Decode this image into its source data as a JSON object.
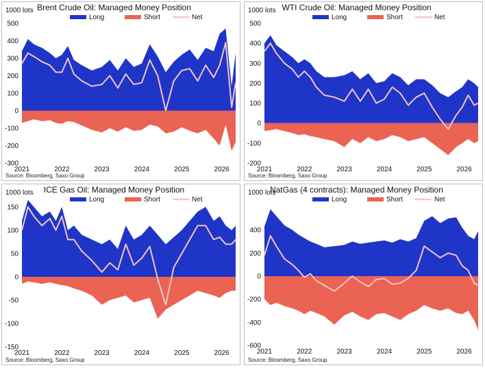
{
  "colors": {
    "long": "#1f35c8",
    "short": "#eb6353",
    "net": "#f7c4cc"
  },
  "chart_data": [
    {
      "type": "area",
      "title": "Brent Crude Oil: Managed Money Position",
      "unit_label": "1000 lots",
      "source": "Source: Bloomberg, Saxo Group",
      "legend": [
        "Long",
        "Short",
        "Net"
      ],
      "legend_position": "top",
      "ylim": [
        -300,
        500
      ],
      "yticks": [
        500,
        400,
        300,
        200,
        100,
        0,
        -100,
        -200,
        -300
      ],
      "xlim": [
        2021.0,
        2026.35
      ],
      "xticks": [
        "2021",
        "2022",
        "2023",
        "2024",
        "2025",
        "2026"
      ],
      "series": [
        {
          "name": "Long",
          "x": [
            2021.0,
            2021.15,
            2021.3,
            2021.5,
            2021.7,
            2021.85,
            2022.0,
            2022.15,
            2022.3,
            2022.5,
            2022.75,
            2023.0,
            2023.2,
            2023.4,
            2023.6,
            2023.8,
            2024.0,
            2024.2,
            2024.4,
            2024.6,
            2024.8,
            2025.0,
            2025.2,
            2025.4,
            2025.6,
            2025.8,
            2025.95,
            2026.1,
            2026.25,
            2026.35
          ],
          "values": [
            340,
            410,
            380,
            360,
            330,
            300,
            320,
            370,
            290,
            260,
            230,
            250,
            290,
            230,
            300,
            250,
            270,
            380,
            310,
            220,
            280,
            320,
            350,
            290,
            360,
            340,
            440,
            470,
            140,
            330
          ]
        },
        {
          "name": "Short",
          "x": [
            2021.0,
            2021.15,
            2021.3,
            2021.5,
            2021.7,
            2021.85,
            2022.0,
            2022.15,
            2022.3,
            2022.5,
            2022.75,
            2023.0,
            2023.2,
            2023.4,
            2023.6,
            2023.8,
            2024.0,
            2024.2,
            2024.4,
            2024.6,
            2024.8,
            2025.0,
            2025.2,
            2025.4,
            2025.6,
            2025.8,
            2025.95,
            2026.1,
            2026.25,
            2026.35
          ],
          "values": [
            -70,
            -60,
            -50,
            -60,
            -55,
            -70,
            -75,
            -60,
            -65,
            -85,
            -110,
            -125,
            -100,
            -120,
            -95,
            -115,
            -110,
            -80,
            -90,
            -130,
            -120,
            -95,
            -115,
            -130,
            -110,
            -160,
            -200,
            -80,
            -230,
            -180
          ]
        },
        {
          "name": "Net",
          "x": [
            2021.0,
            2021.15,
            2021.3,
            2021.5,
            2021.7,
            2021.85,
            2022.0,
            2022.15,
            2022.3,
            2022.5,
            2022.75,
            2023.0,
            2023.2,
            2023.4,
            2023.6,
            2023.8,
            2024.0,
            2024.2,
            2024.4,
            2024.6,
            2024.8,
            2025.0,
            2025.2,
            2025.4,
            2025.6,
            2025.8,
            2025.95,
            2026.1,
            2026.25,
            2026.35
          ],
          "values": [
            270,
            330,
            310,
            280,
            260,
            220,
            220,
            300,
            210,
            170,
            140,
            150,
            200,
            130,
            210,
            150,
            160,
            290,
            200,
            0,
            170,
            230,
            240,
            170,
            260,
            190,
            260,
            390,
            20,
            160
          ]
        }
      ]
    },
    {
      "type": "area",
      "title": "WTI Crude Oil: Managed Money Position",
      "unit_label": "1000 lots",
      "source": "Source: Bloomberg, Saxo Group",
      "legend": [
        "Long",
        "Short",
        "Net"
      ],
      "legend_position": "top",
      "ylim": [
        -200,
        500
      ],
      "yticks": [
        500,
        400,
        300,
        200,
        100,
        0,
        -100,
        -200
      ],
      "xlim": [
        2021.0,
        2026.35
      ],
      "xticks": [
        "2021",
        "2022",
        "2023",
        "2024",
        "2025",
        "2026"
      ],
      "series": [
        {
          "name": "Long",
          "x": [
            2021.0,
            2021.15,
            2021.3,
            2021.5,
            2021.7,
            2021.85,
            2022.0,
            2022.15,
            2022.3,
            2022.5,
            2022.75,
            2023.0,
            2023.2,
            2023.4,
            2023.6,
            2023.8,
            2024.0,
            2024.2,
            2024.4,
            2024.6,
            2024.8,
            2025.0,
            2025.2,
            2025.4,
            2025.6,
            2025.8,
            2025.95,
            2026.1,
            2026.25,
            2026.35
          ],
          "values": [
            400,
            440,
            390,
            360,
            330,
            300,
            320,
            300,
            260,
            230,
            230,
            240,
            260,
            220,
            250,
            200,
            210,
            250,
            230,
            190,
            220,
            220,
            190,
            150,
            130,
            160,
            180,
            220,
            200,
            180
          ]
        },
        {
          "name": "Short",
          "x": [
            2021.0,
            2021.15,
            2021.3,
            2021.5,
            2021.7,
            2021.85,
            2022.0,
            2022.15,
            2022.3,
            2022.5,
            2022.75,
            2023.0,
            2023.2,
            2023.4,
            2023.6,
            2023.8,
            2024.0,
            2024.2,
            2024.4,
            2024.6,
            2024.8,
            2025.0,
            2025.2,
            2025.4,
            2025.6,
            2025.8,
            2025.95,
            2026.1,
            2026.25,
            2026.35
          ],
          "values": [
            -40,
            -35,
            -30,
            -40,
            -50,
            -60,
            -55,
            -65,
            -70,
            -80,
            -90,
            -120,
            -80,
            -100,
            -70,
            -90,
            -80,
            -60,
            -70,
            -90,
            -80,
            -70,
            -100,
            -130,
            -160,
            -120,
            -100,
            -80,
            -100,
            -90
          ]
        },
        {
          "name": "Net",
          "x": [
            2021.0,
            2021.15,
            2021.3,
            2021.5,
            2021.7,
            2021.85,
            2022.0,
            2022.15,
            2022.3,
            2022.5,
            2022.75,
            2023.0,
            2023.2,
            2023.4,
            2023.6,
            2023.8,
            2024.0,
            2024.2,
            2024.4,
            2024.6,
            2024.8,
            2025.0,
            2025.2,
            2025.4,
            2025.6,
            2025.8,
            2025.95,
            2026.1,
            2026.25,
            2026.35
          ],
          "values": [
            360,
            400,
            350,
            300,
            270,
            230,
            260,
            230,
            180,
            140,
            130,
            110,
            170,
            110,
            170,
            100,
            120,
            180,
            150,
            90,
            130,
            150,
            80,
            20,
            -30,
            40,
            80,
            140,
            90,
            100
          ]
        }
      ]
    },
    {
      "type": "area",
      "title": "ICE Gas Oil: Managed Money Position",
      "unit_label": "1000 lots",
      "source": "Source: Bloomberg, Saxo Group",
      "legend": [
        "Long",
        "Short",
        "Net"
      ],
      "legend_position": "top",
      "ylim": [
        -150,
        150
      ],
      "yticks": [
        150,
        100,
        50,
        0,
        -50,
        -100,
        -150
      ],
      "xlim": [
        2021.0,
        2026.35
      ],
      "xticks": [
        "2021",
        "2022",
        "2023",
        "2024",
        "2025",
        "2026"
      ],
      "series": [
        {
          "name": "Long",
          "x": [
            2021.0,
            2021.15,
            2021.3,
            2021.5,
            2021.7,
            2021.85,
            2022.0,
            2022.15,
            2022.3,
            2022.5,
            2022.75,
            2023.0,
            2023.2,
            2023.4,
            2023.6,
            2023.8,
            2024.0,
            2024.2,
            2024.4,
            2024.6,
            2024.8,
            2025.0,
            2025.2,
            2025.4,
            2025.6,
            2025.8,
            2025.95,
            2026.1,
            2026.25,
            2026.35
          ],
          "values": [
            120,
            165,
            150,
            130,
            140,
            120,
            150,
            100,
            110,
            90,
            80,
            70,
            80,
            60,
            110,
            80,
            90,
            110,
            90,
            70,
            85,
            100,
            120,
            140,
            150,
            120,
            130,
            110,
            100,
            110
          ]
        },
        {
          "name": "Short",
          "x": [
            2021.0,
            2021.15,
            2021.3,
            2021.5,
            2021.7,
            2021.85,
            2022.0,
            2022.15,
            2022.3,
            2022.5,
            2022.75,
            2023.0,
            2023.2,
            2023.4,
            2023.6,
            2023.8,
            2024.0,
            2024.2,
            2024.4,
            2024.6,
            2024.8,
            2025.0,
            2025.2,
            2025.4,
            2025.6,
            2025.8,
            2025.95,
            2026.1,
            2026.25,
            2026.35
          ],
          "values": [
            -15,
            -10,
            -12,
            -15,
            -12,
            -15,
            -18,
            -20,
            -25,
            -30,
            -40,
            -60,
            -50,
            -45,
            -40,
            -55,
            -50,
            -45,
            -90,
            -70,
            -60,
            -50,
            -40,
            -30,
            -35,
            -40,
            -45,
            -35,
            -30,
            -30
          ]
        },
        {
          "name": "Net",
          "x": [
            2021.0,
            2021.15,
            2021.3,
            2021.5,
            2021.7,
            2021.85,
            2022.0,
            2022.15,
            2022.3,
            2022.5,
            2022.75,
            2023.0,
            2023.2,
            2023.4,
            2023.6,
            2023.8,
            2024.0,
            2024.2,
            2024.4,
            2024.6,
            2024.8,
            2025.0,
            2025.2,
            2025.4,
            2025.6,
            2025.8,
            2025.95,
            2026.1,
            2026.25,
            2026.35
          ],
          "values": [
            100,
            150,
            130,
            110,
            125,
            100,
            130,
            80,
            80,
            55,
            35,
            10,
            30,
            15,
            70,
            25,
            40,
            65,
            -5,
            -60,
            20,
            50,
            80,
            110,
            110,
            80,
            85,
            70,
            70,
            80
          ]
        }
      ]
    },
    {
      "type": "area",
      "title": "NatGas (4 contracts): Managed Money Position",
      "unit_label": "1000 lots",
      "source": "Source: Bloomberg, Saxo Group",
      "legend": [
        "Long",
        "Short",
        "Net"
      ],
      "legend_position": "top",
      "ylim": [
        -600,
        600
      ],
      "yticks": [
        400,
        200,
        0,
        -200,
        -400,
        -600
      ],
      "xlim": [
        2021.0,
        2026.35
      ],
      "xticks": [
        "2021",
        "2022",
        "2023",
        "2024",
        "2025",
        "2026"
      ],
      "series": [
        {
          "name": "Long",
          "x": [
            2021.0,
            2021.15,
            2021.3,
            2021.5,
            2021.7,
            2021.85,
            2022.0,
            2022.15,
            2022.3,
            2022.5,
            2022.75,
            2023.0,
            2023.2,
            2023.4,
            2023.6,
            2023.8,
            2024.0,
            2024.2,
            2024.4,
            2024.6,
            2024.8,
            2025.0,
            2025.2,
            2025.4,
            2025.6,
            2025.8,
            2025.95,
            2026.1,
            2026.25,
            2026.35
          ],
          "values": [
            430,
            580,
            520,
            440,
            400,
            360,
            330,
            300,
            280,
            250,
            260,
            270,
            300,
            280,
            290,
            300,
            310,
            290,
            320,
            300,
            330,
            480,
            520,
            460,
            500,
            510,
            420,
            350,
            320,
            390
          ]
        },
        {
          "name": "Short",
          "x": [
            2021.0,
            2021.15,
            2021.3,
            2021.5,
            2021.7,
            2021.85,
            2022.0,
            2022.15,
            2022.3,
            2022.5,
            2022.75,
            2023.0,
            2023.2,
            2023.4,
            2023.6,
            2023.8,
            2024.0,
            2024.2,
            2024.4,
            2024.6,
            2024.8,
            2025.0,
            2025.2,
            2025.4,
            2025.6,
            2025.8,
            2025.95,
            2026.1,
            2026.25,
            2026.35
          ],
          "values": [
            -200,
            -250,
            -230,
            -260,
            -280,
            -300,
            -330,
            -300,
            -320,
            -350,
            -420,
            -340,
            -310,
            -350,
            -380,
            -330,
            -320,
            -350,
            -380,
            -330,
            -300,
            -250,
            -280,
            -300,
            -280,
            -320,
            -330,
            -300,
            -380,
            -470
          ]
        },
        {
          "name": "Net",
          "x": [
            2021.0,
            2021.15,
            2021.3,
            2021.5,
            2021.7,
            2021.85,
            2022.0,
            2022.15,
            2022.3,
            2022.5,
            2022.75,
            2023.0,
            2023.2,
            2023.4,
            2023.6,
            2023.8,
            2024.0,
            2024.2,
            2024.4,
            2024.6,
            2024.8,
            2025.0,
            2025.2,
            2025.4,
            2025.6,
            2025.8,
            2025.95,
            2026.1,
            2026.25,
            2026.35
          ],
          "values": [
            180,
            350,
            260,
            150,
            100,
            50,
            -10,
            20,
            -40,
            -80,
            -130,
            -60,
            0,
            -50,
            -90,
            -30,
            -20,
            -70,
            -60,
            -20,
            50,
            260,
            210,
            160,
            200,
            180,
            90,
            50,
            -60,
            -80
          ]
        }
      ]
    }
  ]
}
